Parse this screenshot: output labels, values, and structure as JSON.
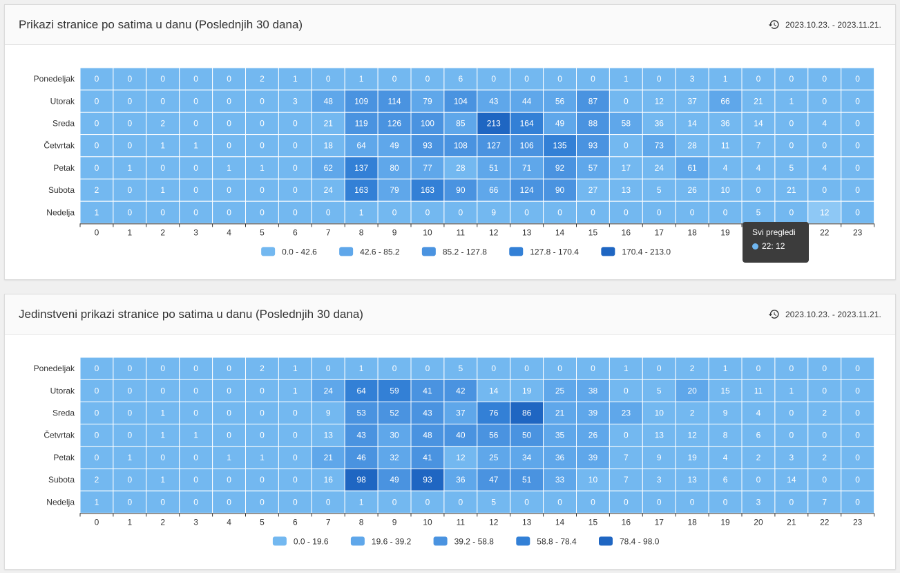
{
  "days": [
    "Ponedeljak",
    "Utorak",
    "Sreda",
    "Četvrtak",
    "Petak",
    "Subota",
    "Nedelja"
  ],
  "hours": [
    "0",
    "1",
    "2",
    "3",
    "4",
    "5",
    "6",
    "7",
    "8",
    "9",
    "10",
    "11",
    "12",
    "13",
    "14",
    "15",
    "16",
    "17",
    "18",
    "19",
    "20",
    "21",
    "22",
    "23"
  ],
  "colors": [
    "#73b8f0",
    "#5fa7ea",
    "#4a93e0",
    "#3380d6",
    "#1f66c2"
  ],
  "panels": [
    {
      "title": "Prikazi stranice po satima u danu (Poslednjih 30 dana)",
      "date_range": "2023.10.23. - 2023.11.21.",
      "chart_data": {
        "type": "heatmap",
        "max": 213,
        "values": [
          [
            0,
            0,
            0,
            0,
            0,
            2,
            1,
            0,
            1,
            0,
            0,
            6,
            0,
            0,
            0,
            0,
            1,
            0,
            3,
            1,
            0,
            0,
            0,
            0
          ],
          [
            0,
            0,
            0,
            0,
            0,
            0,
            3,
            48,
            109,
            114,
            79,
            104,
            43,
            44,
            56,
            87,
            0,
            12,
            37,
            66,
            21,
            1,
            0,
            0
          ],
          [
            0,
            0,
            2,
            0,
            0,
            0,
            0,
            21,
            119,
            126,
            100,
            85,
            213,
            164,
            49,
            88,
            58,
            36,
            14,
            36,
            14,
            0,
            4,
            0
          ],
          [
            0,
            0,
            1,
            1,
            0,
            0,
            0,
            18,
            64,
            49,
            93,
            108,
            127,
            106,
            135,
            93,
            0,
            73,
            28,
            11,
            7,
            0,
            0,
            0
          ],
          [
            0,
            1,
            0,
            0,
            1,
            1,
            0,
            62,
            137,
            80,
            77,
            28,
            51,
            71,
            92,
            57,
            17,
            24,
            61,
            4,
            4,
            5,
            4,
            0
          ],
          [
            2,
            0,
            1,
            0,
            0,
            0,
            0,
            24,
            163,
            79,
            163,
            90,
            66,
            124,
            90,
            27,
            13,
            5,
            26,
            10,
            0,
            21,
            0,
            0
          ],
          [
            1,
            0,
            0,
            0,
            0,
            0,
            0,
            0,
            1,
            0,
            0,
            0,
            9,
            0,
            0,
            0,
            0,
            0,
            0,
            0,
            5,
            0,
            12,
            0
          ]
        ],
        "legend": [
          "0.0 - 42.6",
          "42.6 - 85.2",
          "85.2 - 127.8",
          "127.8 - 170.4",
          "170.4 - 213.0"
        ]
      },
      "tooltip": {
        "title": "Svi pregledi",
        "value": "22: 12"
      }
    },
    {
      "title": "Jedinstveni prikazi stranice po satima u danu (Poslednjih 30 dana)",
      "date_range": "2023.10.23. - 2023.11.21.",
      "chart_data": {
        "type": "heatmap",
        "max": 98,
        "values": [
          [
            0,
            0,
            0,
            0,
            0,
            2,
            1,
            0,
            1,
            0,
            0,
            5,
            0,
            0,
            0,
            0,
            1,
            0,
            2,
            1,
            0,
            0,
            0,
            0
          ],
          [
            0,
            0,
            0,
            0,
            0,
            0,
            1,
            24,
            64,
            59,
            41,
            42,
            14,
            19,
            25,
            38,
            0,
            5,
            20,
            15,
            11,
            1,
            0,
            0
          ],
          [
            0,
            0,
            1,
            0,
            0,
            0,
            0,
            9,
            53,
            52,
            43,
            37,
            76,
            86,
            21,
            39,
            23,
            10,
            2,
            9,
            4,
            0,
            2,
            0
          ],
          [
            0,
            0,
            1,
            1,
            0,
            0,
            0,
            13,
            43,
            30,
            48,
            40,
            56,
            50,
            35,
            26,
            0,
            13,
            12,
            8,
            6,
            0,
            0,
            0
          ],
          [
            0,
            1,
            0,
            0,
            1,
            1,
            0,
            21,
            46,
            32,
            41,
            12,
            25,
            34,
            36,
            39,
            7,
            9,
            19,
            4,
            2,
            3,
            2,
            0
          ],
          [
            2,
            0,
            1,
            0,
            0,
            0,
            0,
            16,
            98,
            49,
            93,
            36,
            47,
            51,
            33,
            10,
            7,
            3,
            13,
            6,
            0,
            14,
            0,
            0
          ],
          [
            1,
            0,
            0,
            0,
            0,
            0,
            0,
            0,
            1,
            0,
            0,
            0,
            5,
            0,
            0,
            0,
            0,
            0,
            0,
            0,
            3,
            0,
            7,
            0
          ]
        ],
        "legend": [
          "0.0 - 19.6",
          "19.6 - 39.2",
          "39.2 - 58.8",
          "58.8 - 78.4",
          "78.4 - 98.0"
        ]
      }
    }
  ]
}
